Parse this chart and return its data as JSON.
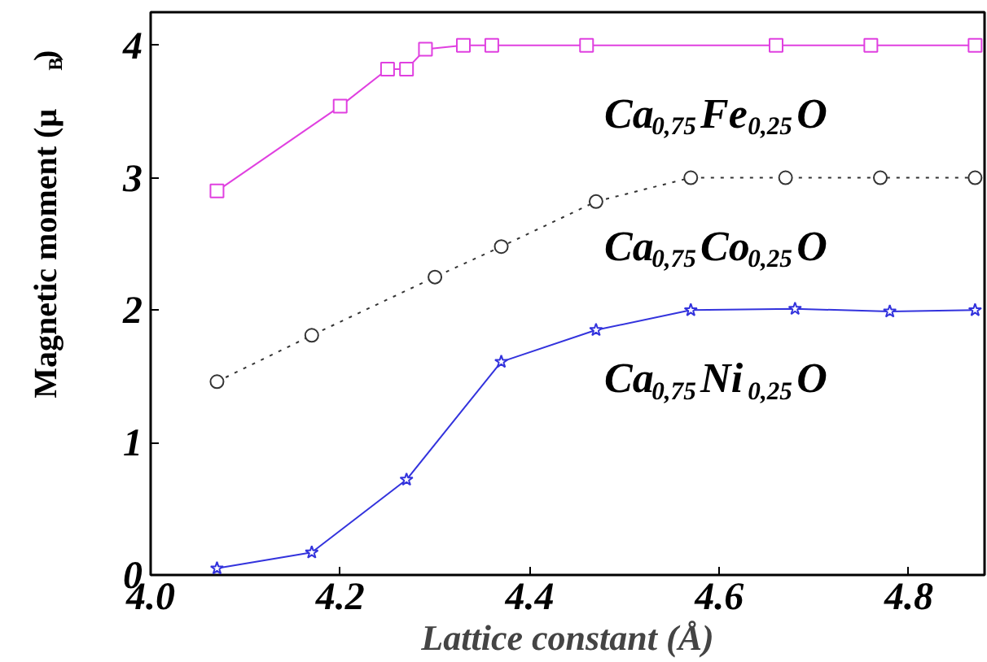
{
  "chart_data": {
    "type": "line",
    "xlabel": "Lattice constant (Å)",
    "ylabel": "Magnetic moment (μ$_{B}$)",
    "xlim": [
      4.0,
      4.88
    ],
    "ylim": [
      0,
      4.25
    ],
    "xticks": [
      {
        "value": 4.0,
        "label": "4.0"
      },
      4.2,
      4.4,
      4.6,
      4.8
    ],
    "yticks": [
      0,
      1,
      2,
      3,
      4
    ],
    "grid": false,
    "series": [
      {
        "name": "Ca$_{0,75}$Fe$_{0,25}$O",
        "color": "#e040e0",
        "marker": "square",
        "line_style": "solid",
        "x": [
          4.07,
          4.2,
          4.25,
          4.27,
          4.29,
          4.33,
          4.36,
          4.46,
          4.66,
          4.76,
          4.87
        ],
        "values": [
          2.9,
          3.54,
          3.82,
          3.82,
          3.97,
          4.0,
          4.0,
          4.0,
          4.0,
          4.0,
          4.0
        ]
      },
      {
        "name": "Ca$_{0,75}$Co$_{0,25}$O",
        "color": "#333333",
        "marker": "circle",
        "line_style": "dotted",
        "x": [
          4.07,
          4.17,
          4.3,
          4.37,
          4.47,
          4.57,
          4.67,
          4.77,
          4.87
        ],
        "values": [
          1.46,
          1.81,
          2.25,
          2.48,
          2.82,
          3.0,
          3.0,
          3.0,
          3.0
        ]
      },
      {
        "name": "Ca$_{0,75}$Ni$_{0,25}$O",
        "color": "#3333dd",
        "marker": "star",
        "line_style": "solid",
        "x": [
          4.07,
          4.17,
          4.27,
          4.37,
          4.47,
          4.57,
          4.68,
          4.78,
          4.87
        ],
        "values": [
          0.05,
          0.17,
          0.72,
          1.61,
          1.85,
          2.0,
          2.01,
          1.99,
          2.0
        ]
      }
    ]
  }
}
